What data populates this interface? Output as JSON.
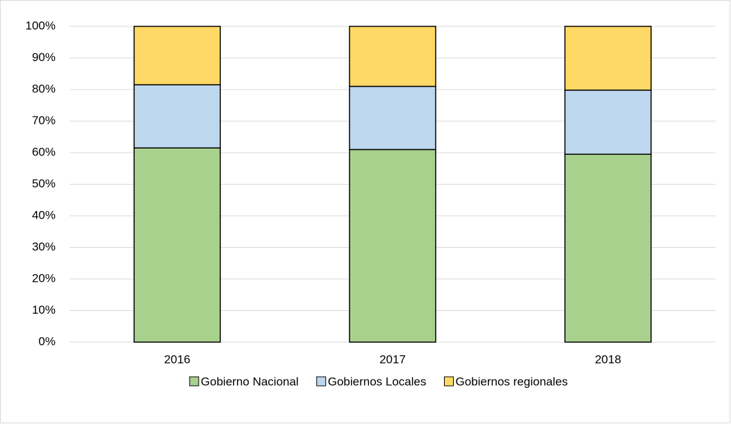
{
  "chart_data": {
    "type": "stacked_bar",
    "categories": [
      "2016",
      "2017",
      "2018"
    ],
    "series": [
      {
        "name": "Gobierno Nacional",
        "color": "#a9d18e",
        "values": [
          61.5,
          61,
          59.5
        ]
      },
      {
        "name": "Gobiernos Locales",
        "color": "#bdd7ee",
        "values": [
          20,
          20,
          20.3
        ]
      },
      {
        "name": "Gobiernos regionales",
        "color": "#ffd966",
        "values": [
          18.5,
          19,
          20.2
        ]
      }
    ],
    "ylim": [
      0,
      100
    ],
    "yticks": [
      {
        "value": 0,
        "label": "0%"
      },
      {
        "value": 10,
        "label": "10%"
      },
      {
        "value": 20,
        "label": "20%"
      },
      {
        "value": 30,
        "label": "30%"
      },
      {
        "value": 40,
        "label": "40%"
      },
      {
        "value": 50,
        "label": "50%"
      },
      {
        "value": 60,
        "label": "60%"
      },
      {
        "value": 70,
        "label": "70%"
      },
      {
        "value": 80,
        "label": "80%"
      },
      {
        "value": 90,
        "label": "90%"
      },
      {
        "value": 100,
        "label": "100%"
      }
    ],
    "grid": true,
    "legend": "bottom"
  }
}
